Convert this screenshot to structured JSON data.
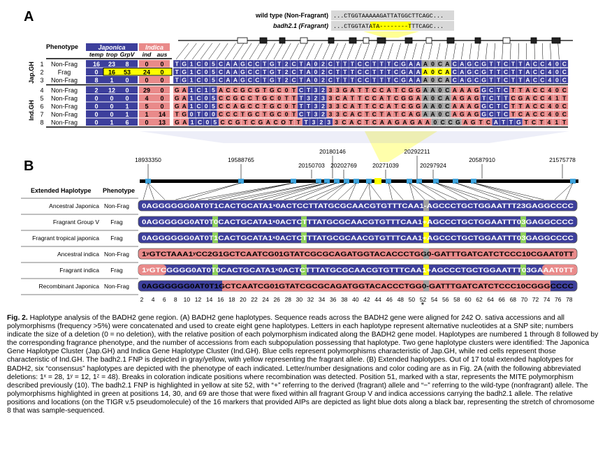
{
  "panel_a": {
    "label": "A",
    "wt_label": "wild type (Non-Fragrant)",
    "wt_seq": "...CTGGTAAAAAGATTATGGCTTCAGC...",
    "frag_label": "badh2.1 (Fragrant)",
    "frag_seq": "...CTGGTATATA--------TTTCAGC...",
    "header_phenotype": "Phenotype",
    "header_japonica": "Japonica",
    "header_indica": "Indica",
    "subheaders": [
      "temp",
      "trop",
      "GrpV",
      "ind",
      "aus"
    ],
    "group_labels": [
      "Jap.GH",
      "Ind.GH"
    ],
    "rows": [
      {
        "num": "1",
        "pheno": "Non-Frag",
        "counts": [
          "16",
          "23",
          "8",
          "0",
          "0"
        ],
        "seq": "TG1C05CAAGCCTGT2CTA02CTTTCCTTTCGAAA0CACAGCGTTCTTACC40C",
        "grp": "jap"
      },
      {
        "num": "2",
        "pheno": "Frag",
        "counts": [
          "0",
          "16",
          "53",
          "24",
          "0"
        ],
        "seq": "TG1C05CAAGCCTGT2CTA02CTTTCCTTTCGAAA0CACAGCGTTCTTACC40C",
        "grp": "jap"
      },
      {
        "num": "3",
        "pheno": "Non-Frag",
        "counts": [
          "8",
          "1",
          "0",
          "0",
          "0"
        ],
        "seq": "TG1C05CAAGCCTGT2CTA02CTTTCCTTTCGAAA0CACAGCGTTCTTACC40C",
        "grp": "jap"
      },
      {
        "num": "4",
        "pheno": "Non-Frag",
        "counts": [
          "2",
          "12",
          "0",
          "29",
          "0"
        ],
        "seq": "GA1C15ACCGCGTGC0TCT3233GATTCCATCGGAA0CAAAGGCTCTTACC40C",
        "grp": "ind"
      },
      {
        "num": "5",
        "pheno": "Non-Frag",
        "counts": [
          "0",
          "0",
          "0",
          "4",
          "0"
        ],
        "seq": "GA1C05CCGCCTGC0TTT3233CATTCCATCGGAA0CAAGAGTCTTCGACC41T",
        "grp": "ind"
      },
      {
        "num": "6",
        "pheno": "Non-Frag",
        "counts": [
          "0",
          "0",
          "1",
          "5",
          "0"
        ],
        "seq": "GA1C05CCAGCCTGC0TTT3233CATTCCATCGGAA0CAAAGGCTCTTACC40C",
        "grp": "ind"
      },
      {
        "num": "7",
        "pheno": "Non-Frag",
        "counts": [
          "0",
          "0",
          "1",
          "1",
          "14"
        ],
        "seq": "TG0T00CCCTGCTGC0TCT3233CACTCTATCAGAA0CAGAGGCTCTCACC40C",
        "grp": "ind"
      },
      {
        "num": "8",
        "pheno": "Non-Frag",
        "counts": [
          "0",
          "1",
          "6",
          "0",
          "13"
        ],
        "seq": "GA1C05CCGTCGACOTTT3233CACTCAAGAGAA0CCGAGTCATTGTCT41T",
        "grp": "ind"
      }
    ],
    "frag_allele": "TT8T"
  },
  "panel_b": {
    "label": "B",
    "markers": [
      "18933350",
      "19588765",
      "20180146",
      "20150703",
      "20202769",
      "20271039",
      "20292211",
      "20297924",
      "20587910",
      "21575778"
    ],
    "header_haplotype": "Extended Haplotype",
    "header_phenotype": "Phenotype",
    "rows": [
      {
        "name": "Ancestral Japonica",
        "pheno": "Non-Frag",
        "seq": "0AGGGGGG0AT0T1CACTGCATA1ˣ0ACTCCTTATGCGCAACGTGTTTCAA1-AGCCCTGCTGGAATTT23GAGGCCCC"
      },
      {
        "name": "Fragrant Group V",
        "pheno": "Frag",
        "seq": "0AGGGGGG0AT0T0CACTGCATA1ˣ0ACTCTTTATGCGCAACGTGTTTCAA1+AGCCCTGCTGGAATTT03GAGGCCCC"
      },
      {
        "name": "Fragrant tropical japonica",
        "pheno": "Frag",
        "seq": "0AGGGGGG0AT0T1CACTGCATA1ˣ0ACTCTTTATGCGCAACGTGTTTCAA1+AGCCCTGCTGGAATTT03GAGGCCCC"
      },
      {
        "name": "Ancestral indica",
        "pheno": "Non-Frag",
        "seq": "1ʸGTCTAAA1ʸCC2G1GCTCAATCG01GTATCGCGCAGATGGTACACCCTGG0-GATTTGATCATCTCCC10CGAAT0TT"
      },
      {
        "name": "Fragrant indica",
        "pheno": "Frag",
        "seq": "1ʸGTCGGGG0AT0T0CACTGCATA1ˣ0ACTCTTTATGCGCAACGTGTTTCAA1+AGCCCTGCTGGAATTT03GAAAT0TT"
      },
      {
        "name": "Recombinant Japonica",
        "pheno": "Non-Frag",
        "seq": "0AGGGGGG0AT0T1GCTCAATCG01GTATCGCGCAGATGGTACACCCTGG0-GATTTGATCATCTCCC10CGGGCCCC"
      }
    ],
    "axis_ticks": [
      "2",
      "4",
      "6",
      "8",
      "10",
      "12",
      "14",
      "16",
      "18",
      "20",
      "22",
      "24",
      "26",
      "28",
      "30",
      "32",
      "34",
      "36",
      "38",
      "40",
      "42",
      "44",
      "46",
      "48",
      "50",
      "52",
      "54",
      "56",
      "58",
      "60",
      "62",
      "64",
      "66",
      "68",
      "70",
      "72",
      "74",
      "76",
      "78"
    ],
    "star": "*"
  },
  "caption": {
    "fig": "Fig. 2.",
    "body": "Haplotype analysis of the BADH2 gene region. (A) BADH2 gene haplotypes. Sequence reads across the BADH2 gene were aligned for 242 O. sativa accessions and all polymorphisms (frequency >5%) were concatenated and used to create eight gene haplotypes. Letters in each haplotype represent alternative nucleotides at a SNP site; numbers indicate the size of a deletion (0 = no deletion), with the relative position of each polymorphism indicated along the BADH2 gene model. Haplotypes are numbered 1 through 8 followed by the corresponding fragrance phenotype, and the number of accessions from each subpopulation possessing that haplotype. Two gene haplotype clusters were identified: The Japonica Gene Haplotype Cluster (Jap.GH) and Indica Gene Haplotype Cluster (Ind.GH). Blue cells represent polymorphisms characteristic of Jap.GH, while red cells represent those characteristic of Ind.GH. The badh2.1 FNP is depicted in gray/yellow, with yellow representing the fragrant allele. (B) Extended haplotypes. Out of 17 total extended haplotypes for BADH2, six “consensus” haplotypes are depicted with the phenotype of each indicated. Letter/number designations and color coding are as in Fig. 2A (with the following abbreviated deletions: 1ˣ = 28, 1ʸ = 12, 1ᶻ = 48). Breaks in coloration indicate positions where recombination was detected. Position 51, marked with a star, represents the MITE polymorphism described previously (10). The badh2.1 FNP is highlighted in yellow at site 52, with “+” referring to the derived (fragrant) allele and “−” referring to the wild-type (nonfragrant) allele. The polymorphisms highlighted in green at positions 14, 30, and 69 are those that were fixed within all fragrant Group V and indica accessions carrying the badh2.1 allele. The relative positions and locations (on the TIGR v.5 pseudomolecule) of the 16 markers that provided AIPs are depicted as light blue dots along a black bar, representing the stretch of chromosome 8 that was sample-sequenced."
  },
  "colors": {
    "jap": "#3d3f9c",
    "ind": "#e98a8a",
    "frag": "#ffff00",
    "fnp": "#a0a0a0",
    "green": "#8ed15a",
    "marker": "#3ea3dc"
  }
}
